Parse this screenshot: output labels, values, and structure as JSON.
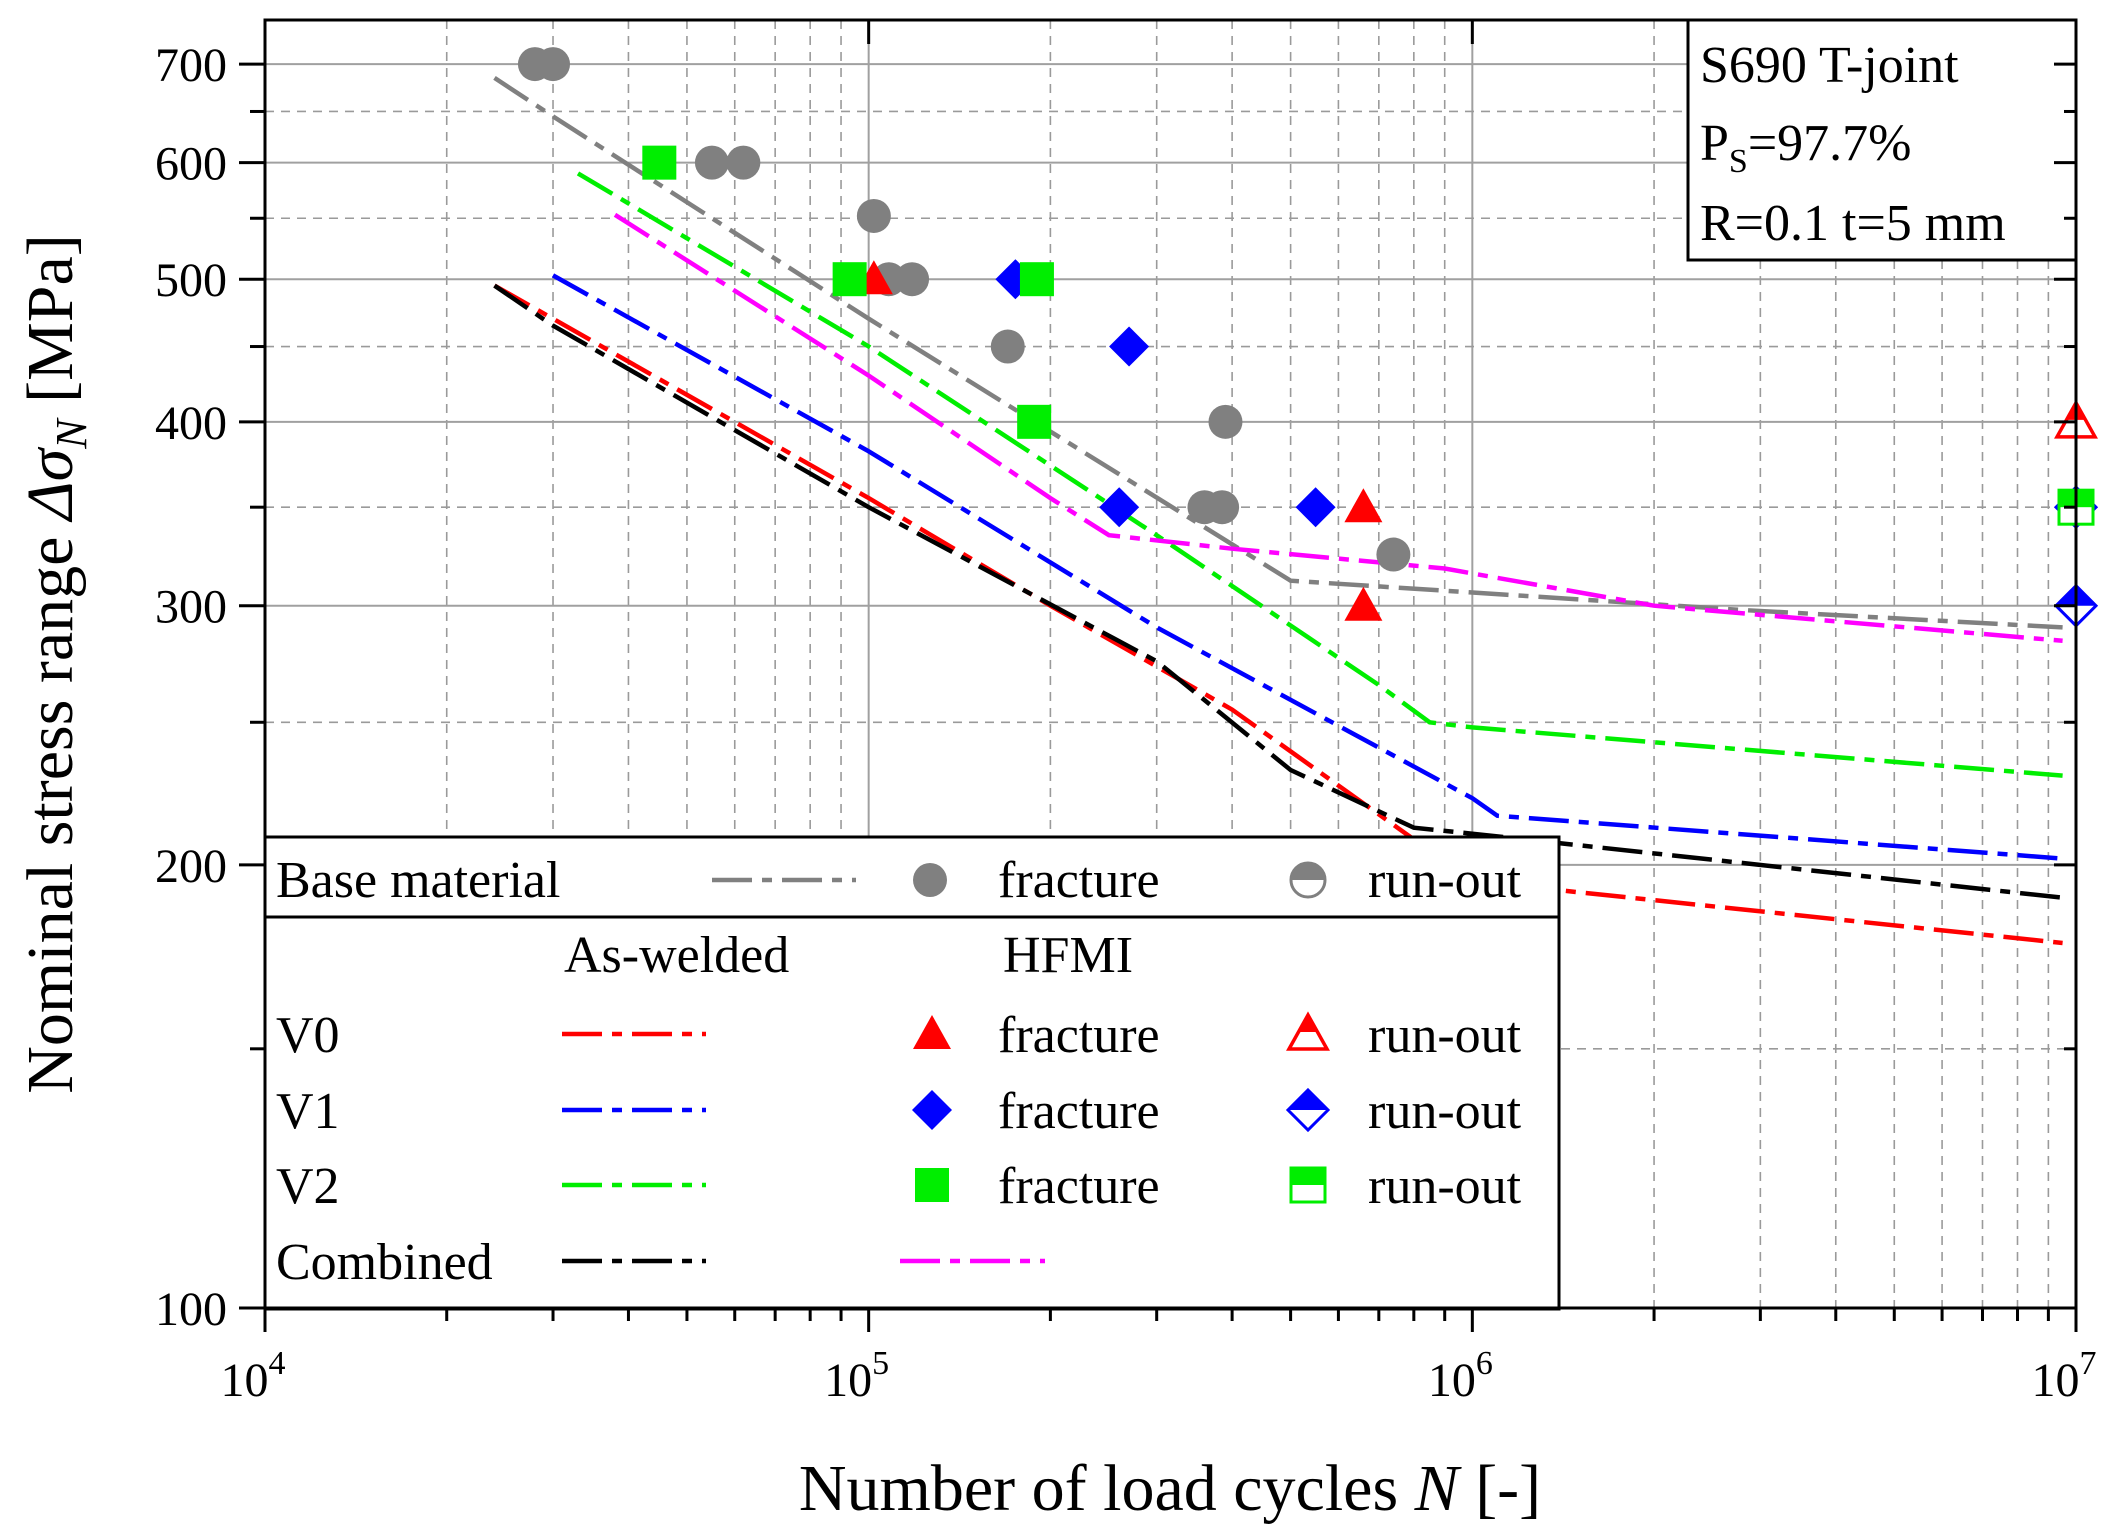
{
  "chart_data": {
    "type": "scatter",
    "title": "",
    "xlabel": "Number of load cycles",
    "xlabel_var": "N",
    "xlabel_unit": "[-]",
    "ylabel": "Nominal stress range",
    "ylabel_var": "Δσ",
    "ylabel_sub": "N",
    "ylabel_unit": "[MPa]",
    "x_scale": "log",
    "y_scale": "log",
    "xlim": [
      10000,
      10000000
    ],
    "ylim": [
      100,
      750
    ],
    "x_ticks": [
      {
        "value": 10000,
        "base": "10",
        "exp": "4"
      },
      {
        "value": 100000,
        "base": "10",
        "exp": "5"
      },
      {
        "value": 1000000,
        "base": "10",
        "exp": "6"
      },
      {
        "value": 10000000,
        "base": "10",
        "exp": "7"
      }
    ],
    "y_ticks": [
      {
        "value": 100,
        "label": "100"
      },
      {
        "value": 200,
        "label": "200"
      },
      {
        "value": 300,
        "label": "300"
      },
      {
        "value": 400,
        "label": "400"
      },
      {
        "value": 500,
        "label": "500"
      },
      {
        "value": 600,
        "label": "600"
      },
      {
        "value": 700,
        "label": "700"
      }
    ],
    "grid": true,
    "info_box": {
      "line1": "S690  T-joint",
      "ps_prefix": "P",
      "ps_sub": "S",
      "ps_value": "=97.7%",
      "line3": "R=0.1  t=5 mm"
    },
    "series": [
      {
        "name": "Base material",
        "kind": "line",
        "color": "#808080",
        "x": [
          24000,
          30000,
          100000,
          270000,
          500000,
          2800000,
          9500000
        ],
        "y": [
          685,
          645,
          470,
          365,
          312,
          298,
          290
        ]
      },
      {
        "name": "V0 As-welded",
        "kind": "line",
        "color": "#ff0000",
        "x": [
          24000,
          30000,
          100000,
          200000,
          400000,
          1000000,
          9500000
        ],
        "y": [
          495,
          470,
          355,
          300,
          255,
          195,
          177
        ]
      },
      {
        "name": "V1 As-welded",
        "kind": "line",
        "color": "#0000ff",
        "x": [
          30000,
          100000,
          300000,
          1000000,
          1100000,
          9500000
        ],
        "y": [
          503,
          382,
          290,
          222,
          216,
          202
        ]
      },
      {
        "name": "V2 As-welded",
        "kind": "line",
        "color": "#00ee00",
        "x": [
          33000,
          100000,
          300000,
          700000,
          850000,
          1000000,
          9500000
        ],
        "y": [
          590,
          450,
          335,
          265,
          250,
          248,
          230
        ]
      },
      {
        "name": "Combined As-welded",
        "kind": "line",
        "color": "#000000",
        "x": [
          24000,
          30000,
          100000,
          300000,
          500000,
          800000,
          1000000,
          9500000
        ],
        "y": [
          495,
          465,
          350,
          275,
          232,
          212,
          210,
          190
        ]
      },
      {
        "name": "Combined HFMI",
        "kind": "line",
        "color": "#ff00ff",
        "x": [
          38000,
          100000,
          200000,
          250000,
          400000,
          900000,
          2000000,
          9500000
        ],
        "y": [
          553,
          430,
          355,
          335,
          328,
          318,
          300,
          284
        ]
      },
      {
        "name": "Base material fracture",
        "kind": "points",
        "marker": "circle",
        "fill": "#808080",
        "x": [
          28000,
          30000,
          55000,
          62000,
          102000,
          108000,
          118000,
          170000,
          360000,
          385000,
          390000,
          740000
        ],
        "y": [
          700,
          700,
          600,
          600,
          552,
          500,
          500,
          450,
          350,
          350,
          400,
          325
        ]
      },
      {
        "name": "V0 HFMI fracture",
        "kind": "points",
        "marker": "triangle",
        "fill": "#ff0000",
        "x": [
          102000,
          660000,
          660000
        ],
        "y": [
          500,
          350,
          300
        ]
      },
      {
        "name": "V0 HFMI run-out",
        "kind": "points",
        "marker": "triangle-open",
        "fill": "#ff0000",
        "x": [
          10000000
        ],
        "y": [
          400
        ]
      },
      {
        "name": "V1 HFMI fracture",
        "kind": "points",
        "marker": "diamond",
        "fill": "#0000ff",
        "x": [
          175000,
          270000,
          260000,
          550000
        ],
        "y": [
          500,
          450,
          350,
          350
        ]
      },
      {
        "name": "V1 HFMI run-out",
        "kind": "points",
        "marker": "diamond-half",
        "fill": "#0000ff",
        "x": [
          10000000,
          10000000
        ],
        "y": [
          350,
          300
        ]
      },
      {
        "name": "V2 HFMI fracture",
        "kind": "points",
        "marker": "square",
        "fill": "#00ee00",
        "x": [
          45000,
          93000,
          190000,
          188000
        ],
        "y": [
          600,
          500,
          500,
          400
        ]
      },
      {
        "name": "V2 HFMI run-out",
        "kind": "points",
        "marker": "square-half",
        "fill": "#00ee00",
        "x": [
          10000000
        ],
        "y": [
          350
        ]
      }
    ],
    "legend": {
      "placement": "bottom-left",
      "row1_label": "Base material",
      "fracture": "fracture",
      "runout": "run-out",
      "as_welded": "As-welded",
      "hfmi": "HFMI",
      "v0": "V0",
      "v1": "V1",
      "v2": "V2",
      "combined": "Combined"
    }
  }
}
